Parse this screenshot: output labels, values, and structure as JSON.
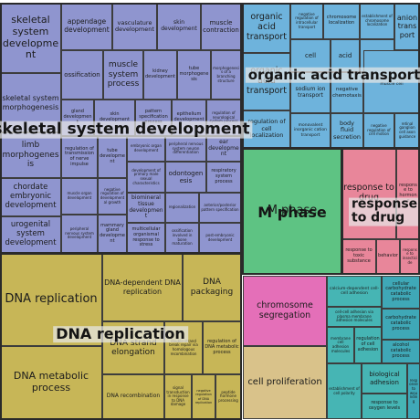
{
  "colors": {
    "skeletal": "#8f95cf",
    "organic_acid": "#6eb3dc",
    "dna_replication": "#c7b657",
    "m_phase": "#5ec383",
    "drug": "#e8869a",
    "chromosome": "#e46fb8",
    "cell_prolif": "#d9c28a",
    "misc": "#46b5b4",
    "misc_alt": "#3fa8b7"
  },
  "groups": {
    "skeletal": "skeletal system development",
    "organic_acid": "organic acid transport",
    "dna_replication": "DNA replication",
    "m_phase": "M phase",
    "drug": "response to drug"
  },
  "tiles": [
    {
      "label": "skeletal system development",
      "size": 11
    },
    {
      "label": "appendage development",
      "size": 7.5
    },
    {
      "label": "vasculature development",
      "size": 6.5
    },
    {
      "label": "skin development",
      "size": 6
    },
    {
      "label": "muscle contraction",
      "size": 7
    },
    {
      "label": "ossification",
      "size": 7
    },
    {
      "label": "muscle system process",
      "size": 9
    },
    {
      "label": "kidney development",
      "size": 5
    },
    {
      "label": "tube morphogenesis",
      "size": 5
    },
    {
      "label": "morphogenesis of a branching structure",
      "size": 4
    },
    {
      "label": "skeletal system morphogenesis",
      "size": 8
    },
    {
      "label": "gland development",
      "size": 5
    },
    {
      "label": "skin development",
      "size": 5
    },
    {
      "label": "pattern specification process",
      "size": 5
    },
    {
      "label": "epithelium development",
      "size": 5
    },
    {
      "label": "regulation of neurological system process",
      "size": 4
    },
    {
      "label": "limb morphogenesis",
      "size": 9
    },
    {
      "label": "regulation of transmission of nerve impulse",
      "size": 5
    },
    {
      "label": "tube development",
      "size": 5
    },
    {
      "label": "embryonic organ development",
      "size": 4
    },
    {
      "label": "peripheral nervous system neuron differentiation",
      "size": 4
    },
    {
      "label": "ear development",
      "size": 6
    },
    {
      "label": "chordate embryonic development",
      "size": 8.5
    },
    {
      "label": "muscle organ development",
      "size": 4
    },
    {
      "label": "negative regulation of developmental growth",
      "size": 4
    },
    {
      "label": "development of primary male sexual characteristics",
      "size": 4
    },
    {
      "label": "odontogenesis",
      "size": 7
    },
    {
      "label": "respiratory system process",
      "size": 5
    },
    {
      "label": "biomineral tissue development",
      "size": 6
    },
    {
      "label": "urogenital system development",
      "size": 8.5
    },
    {
      "label": "peripheral nervous system development",
      "size": 4
    },
    {
      "label": "mammary gland development",
      "size": 5
    },
    {
      "label": "multicellular organismal response to stress",
      "size": 5
    },
    {
      "label": "regionalization",
      "size": 4
    },
    {
      "label": "anterior/posterior pattern specification",
      "size": 4
    },
    {
      "label": "ossification involved in bone maturation",
      "size": 4
    },
    {
      "label": "post-embryonic development",
      "size": 4
    },
    {
      "label": "organic acid transport",
      "size": 9.5
    },
    {
      "label": "negative regulation of intracellular transport",
      "size": 4
    },
    {
      "label": "chromosome localization",
      "size": 5
    },
    {
      "label": "establishment of chromosome localization",
      "size": 4
    },
    {
      "label": "anion transport",
      "size": 8
    },
    {
      "label": "cell",
      "size": 7
    },
    {
      "label": "acid",
      "size": 7
    },
    {
      "label": "organelle",
      "size": 6
    },
    {
      "label": "organic acid transport",
      "size": 9.5
    },
    {
      "label": "sodium ion transport",
      "size": 6
    },
    {
      "label": "negative chemotaxis",
      "size": 5.5
    },
    {
      "label": "regulation of smooth muscle cell",
      "size": 4.5
    },
    {
      "label": "regulation of cell localization",
      "size": 6.5
    },
    {
      "label": "monovalent inorganic cation transport",
      "size": 4.5
    },
    {
      "label": "body fluid secretion",
      "size": 6.5
    },
    {
      "label": "negative regulation of cell motion",
      "size": 4
    },
    {
      "label": "retinal ganglion cell axon guidance",
      "size": 4
    },
    {
      "label": "M phase",
      "size": 13
    },
    {
      "label": "response to drug",
      "size": 9.5
    },
    {
      "label": "response to hormone",
      "size": 5
    },
    {
      "label": "response to toxic substance",
      "size": 5
    },
    {
      "label": "behavior",
      "size": 5
    },
    {
      "label": "response to insecticide",
      "size": 4
    },
    {
      "label": "DNA replication",
      "size": 13
    },
    {
      "label": "DNA-dependent DNA replication",
      "size": 8
    },
    {
      "label": "DNA packaging",
      "size": 9
    },
    {
      "label": "DNA metabolic process",
      "size": 11
    },
    {
      "label": "DNA strand elongation",
      "size": 9
    },
    {
      "label": "double-strand break repair via homologous recombination",
      "size": 4
    },
    {
      "label": "regulation of DNA metabolic process",
      "size": 5
    },
    {
      "label": "DNA recombination",
      "size": 6
    },
    {
      "label": "signal transduction in response to DNA damage",
      "size": 4
    },
    {
      "label": "negative regulation of DNA replication",
      "size": 3.5
    },
    {
      "label": "peptide hormone processing",
      "size": 4
    },
    {
      "label": "chromosome segregation",
      "size": 9.5
    },
    {
      "label": "cell proliferation",
      "size": 10
    },
    {
      "label": "calcium-dependent cell-cell adhesion",
      "size": 4.5
    },
    {
      "label": "cell-cell adhesion via plasma membrane adhesion molecules",
      "size": 4
    },
    {
      "label": "membrane cell adhesion molecules",
      "size": 4
    },
    {
      "label": "regulation of cell adhesion",
      "size": 5
    },
    {
      "label": "cellular carbohydrate catabolic process",
      "size": 5
    },
    {
      "label": "carbohydrate catabolic process",
      "size": 5
    },
    {
      "label": "alcohol catabolic process",
      "size": 5
    },
    {
      "label": "establishment of cell polarity",
      "size": 4
    },
    {
      "label": "biological adhesion",
      "size": 7
    },
    {
      "label": "response to oxygen levels",
      "size": 5
    },
    {
      "label": "response to wounding",
      "size": 4
    }
  ]
}
